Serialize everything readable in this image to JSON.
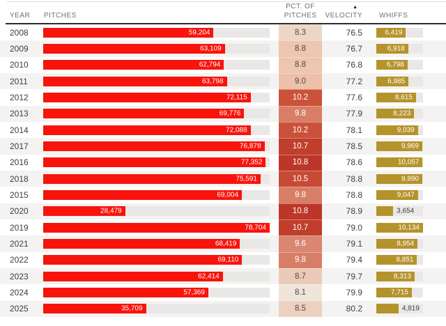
{
  "header": {
    "year": "YEAR",
    "pitches": "PITCHES",
    "pct_line1": "PCT. OF",
    "pct_line2": "PITCHES",
    "velocity": "VELOCITY",
    "whiffs": "WHIFFS",
    "sort_arrow": "▲",
    "sorted_column": "VELOCITY"
  },
  "colors": {
    "pitch_bar": "#f8140c",
    "whiff_bar": "#b5932b",
    "bar_track": "#e9e8e6",
    "zebra_row": "#f4f3f1",
    "header_rule": "#2b2b2b",
    "body_text": "#3d3d3d",
    "header_text": "#6f6f6f"
  },
  "chart_data": {
    "type": "table",
    "title": "",
    "sort": "velocity ascending",
    "columns": [
      "YEAR",
      "PITCHES",
      "PCT. OF PITCHES",
      "VELOCITY",
      "WHIFFS"
    ],
    "pitch_axis_max": 78704,
    "whiff_axis_max": 10134,
    "heatmap_column": "PCT. OF PITCHES",
    "bar_columns": [
      "PITCHES",
      "WHIFFS"
    ],
    "rows": [
      {
        "year_label": "2008",
        "pitches": 59204,
        "pitches_label": "59,204",
        "pct": 8.3,
        "pct_label": "8.3",
        "pct_color": "#ecd7c7",
        "pct_text_color": "#4b4b4b",
        "velocity": 76.5,
        "velocity_label": "76.5",
        "whiffs": 6419,
        "whiffs_label": "6,419",
        "whiff_label_outside": false
      },
      {
        "year_label": "2009",
        "pitches": 63109,
        "pitches_label": "63,109",
        "pct": 8.8,
        "pct_label": "8.8",
        "pct_color": "#eec5ae",
        "pct_text_color": "#4b4b4b",
        "velocity": 76.7,
        "velocity_label": "76.7",
        "whiffs": 6918,
        "whiffs_label": "6,918",
        "whiff_label_outside": false
      },
      {
        "year_label": "2010",
        "pitches": 62794,
        "pitches_label": "62,794",
        "pct": 8.8,
        "pct_label": "8.8",
        "pct_color": "#eec5ae",
        "pct_text_color": "#4b4b4b",
        "velocity": 76.8,
        "velocity_label": "76.8",
        "whiffs": 6798,
        "whiffs_label": "6,798",
        "whiff_label_outside": false
      },
      {
        "year_label": "2011",
        "pitches": 63798,
        "pitches_label": "63,798",
        "pct": 9.0,
        "pct_label": "9.0",
        "pct_color": "#eec0a8",
        "pct_text_color": "#4b4b4b",
        "velocity": 77.2,
        "velocity_label": "77.2",
        "whiffs": 6985,
        "whiffs_label": "6,985",
        "whiff_label_outside": false
      },
      {
        "year_label": "2012",
        "pitches": 72115,
        "pitches_label": "72,115",
        "pct": 10.2,
        "pct_label": "10.2",
        "pct_color": "#cb523a",
        "pct_text_color": "#ffffff",
        "velocity": 77.6,
        "velocity_label": "77.6",
        "whiffs": 8615,
        "whiffs_label": "8,615",
        "whiff_label_outside": false
      },
      {
        "year_label": "2013",
        "pitches": 69776,
        "pitches_label": "69,776",
        "pct": 9.8,
        "pct_label": "9.8",
        "pct_color": "#d87e66",
        "pct_text_color": "#ffffff",
        "velocity": 77.9,
        "velocity_label": "77.9",
        "whiffs": 8223,
        "whiffs_label": "8,223",
        "whiff_label_outside": false
      },
      {
        "year_label": "2014",
        "pitches": 72088,
        "pitches_label": "72,088",
        "pct": 10.2,
        "pct_label": "10.2",
        "pct_color": "#cb523a",
        "pct_text_color": "#ffffff",
        "velocity": 78.1,
        "velocity_label": "78.1",
        "whiffs": 9039,
        "whiffs_label": "9,039",
        "whiff_label_outside": false
      },
      {
        "year_label": "2017",
        "pitches": 76878,
        "pitches_label": "76,878",
        "pct": 10.7,
        "pct_label": "10.7",
        "pct_color": "#c03e2c",
        "pct_text_color": "#ffffff",
        "velocity": 78.5,
        "velocity_label": "78.5",
        "whiffs": 9969,
        "whiffs_label": "9,969",
        "whiff_label_outside": false
      },
      {
        "year_label": "2016",
        "pitches": 77352,
        "pitches_label": "77,352",
        "pct": 10.8,
        "pct_label": "10.8",
        "pct_color": "#bc3629",
        "pct_text_color": "#ffffff",
        "velocity": 78.6,
        "velocity_label": "78.6",
        "whiffs": 10057,
        "whiffs_label": "10,057",
        "whiff_label_outside": false
      },
      {
        "year_label": "2018",
        "pitches": 75591,
        "pitches_label": "75,591",
        "pct": 10.5,
        "pct_label": "10.5",
        "pct_color": "#c64a35",
        "pct_text_color": "#ffffff",
        "velocity": 78.8,
        "velocity_label": "78.8",
        "whiffs": 9990,
        "whiffs_label": "9,990",
        "whiff_label_outside": false
      },
      {
        "year_label": "2015",
        "pitches": 69004,
        "pitches_label": "69,004",
        "pct": 9.8,
        "pct_label": "9.8",
        "pct_color": "#d87e66",
        "pct_text_color": "#ffffff",
        "velocity": 78.8,
        "velocity_label": "78.8",
        "whiffs": 9047,
        "whiffs_label": "9,047",
        "whiff_label_outside": false
      },
      {
        "year_label": "2020",
        "pitches": 28479,
        "pitches_label": "28,479",
        "pct": 10.8,
        "pct_label": "10.8",
        "pct_color": "#bc3629",
        "pct_text_color": "#ffffff",
        "velocity": 78.9,
        "velocity_label": "78.9",
        "whiffs": 3654,
        "whiffs_label": "3,654",
        "whiff_label_outside": true
      },
      {
        "year_label": "2019",
        "pitches": 78704,
        "pitches_label": "78,704",
        "pct": 10.7,
        "pct_label": "10.7",
        "pct_color": "#c03e2c",
        "pct_text_color": "#ffffff",
        "velocity": 79.0,
        "velocity_label": "79.0",
        "whiffs": 10134,
        "whiffs_label": "10,134",
        "whiff_label_outside": false
      },
      {
        "year_label": "2021",
        "pitches": 68419,
        "pitches_label": "68,419",
        "pct": 9.6,
        "pct_label": "9.6",
        "pct_color": "#da8670",
        "pct_text_color": "#ffffff",
        "velocity": 79.1,
        "velocity_label": "79.1",
        "whiffs": 8954,
        "whiffs_label": "8,954",
        "whiff_label_outside": false
      },
      {
        "year_label": "2022",
        "pitches": 69110,
        "pitches_label": "69,110",
        "pct": 9.8,
        "pct_label": "9.8",
        "pct_color": "#d87e66",
        "pct_text_color": "#ffffff",
        "velocity": 79.4,
        "velocity_label": "79.4",
        "whiffs": 8851,
        "whiffs_label": "8,851",
        "whiff_label_outside": false
      },
      {
        "year_label": "2023",
        "pitches": 62414,
        "pitches_label": "62,414",
        "pct": 8.7,
        "pct_label": "8.7",
        "pct_color": "#eccab8",
        "pct_text_color": "#4b4b4b",
        "velocity": 79.7,
        "velocity_label": "79.7",
        "whiffs": 8313,
        "whiffs_label": "8,313",
        "whiff_label_outside": false
      },
      {
        "year_label": "2024",
        "pitches": 57369,
        "pitches_label": "57,369",
        "pct": 8.1,
        "pct_label": "8.1",
        "pct_color": "#f0e5da",
        "pct_text_color": "#4b4b4b",
        "velocity": 79.9,
        "velocity_label": "79.9",
        "whiffs": 7715,
        "whiffs_label": "7,715",
        "whiff_label_outside": false
      },
      {
        "year_label": "2025",
        "pitches": 35709,
        "pitches_label": "35,709",
        "pct": 8.5,
        "pct_label": "8.5",
        "pct_color": "#edd0c0",
        "pct_text_color": "#4b4b4b",
        "velocity": 80.2,
        "velocity_label": "80.2",
        "whiffs": 4819,
        "whiffs_label": "4,819",
        "whiff_label_outside": true
      }
    ]
  }
}
